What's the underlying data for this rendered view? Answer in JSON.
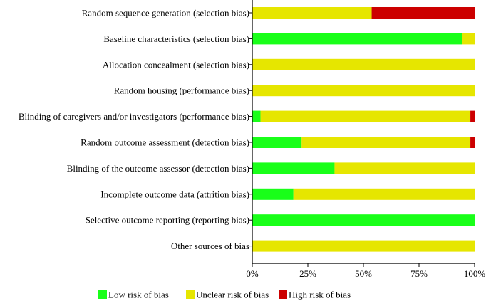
{
  "chart_data": {
    "type": "bar",
    "orientation": "horizontal",
    "stacked": true,
    "categories": [
      "Random sequence generation (selection bias)",
      "Baseline characteristics (selection bias)",
      "Allocation concealment (selection bias)",
      "Random housing (performance bias)",
      "Blinding of caregivers and/or investigators (performance bias)",
      "Random outcome assessment (detection bias)",
      "Blinding of the outcome assessor (detection bias)",
      "Incomplete outcome data (attrition bias)",
      "Selective outcome reporting (reporting bias)",
      "Other sources of bias"
    ],
    "series": [
      {
        "name": "Low risk of bias",
        "color": "#19ff19",
        "values": [
          0,
          94.4,
          0,
          0,
          3.7,
          22.2,
          37,
          18.5,
          100,
          0
        ]
      },
      {
        "name": "Unclear risk of bias",
        "color": "#e6e600",
        "values": [
          53.7,
          5.6,
          100,
          100,
          94.4,
          75.9,
          63,
          81.5,
          0,
          100
        ]
      },
      {
        "name": "High risk of bias",
        "color": "#cc0000",
        "values": [
          46.3,
          0,
          0,
          0,
          1.9,
          1.9,
          0,
          0,
          0,
          0
        ]
      }
    ],
    "x_ticks": [
      "0%",
      "25%",
      "50%",
      "75%",
      "100%"
    ],
    "xlim": [
      0,
      100
    ],
    "xlabel": "",
    "ylabel": "",
    "title": "",
    "grid": false,
    "legend_position": "bottom"
  }
}
